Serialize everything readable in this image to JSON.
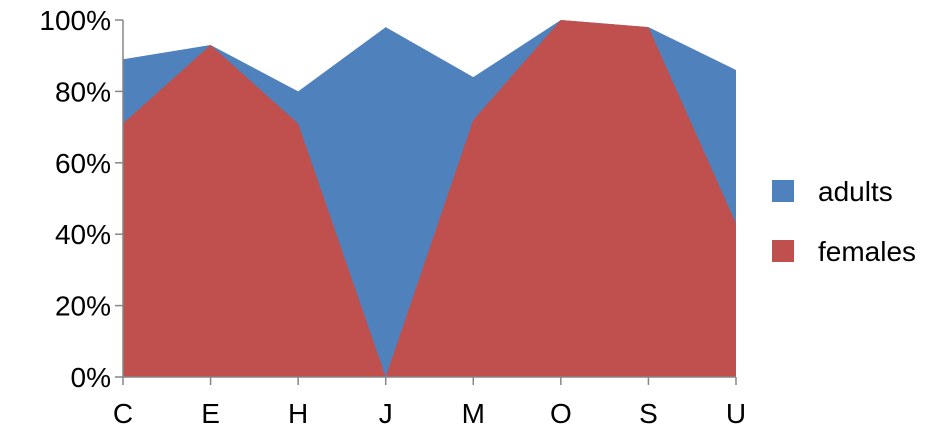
{
  "chart_data": {
    "type": "area",
    "stacked": false,
    "categories": [
      "C",
      "E",
      "H",
      "J",
      "M",
      "O",
      "S",
      "U"
    ],
    "series": [
      {
        "name": "adults",
        "color": "#4F81BD",
        "values": [
          89,
          93,
          80,
          98,
          84,
          100,
          98,
          86
        ]
      },
      {
        "name": "females",
        "color": "#C0504D",
        "values": [
          71,
          93,
          71,
          0,
          72,
          100,
          98,
          43
        ]
      }
    ],
    "y_ticks": [
      "0%",
      "20%",
      "40%",
      "60%",
      "80%",
      "100%"
    ],
    "ylim": [
      0,
      100
    ],
    "grid": false,
    "legend_position": "right"
  }
}
